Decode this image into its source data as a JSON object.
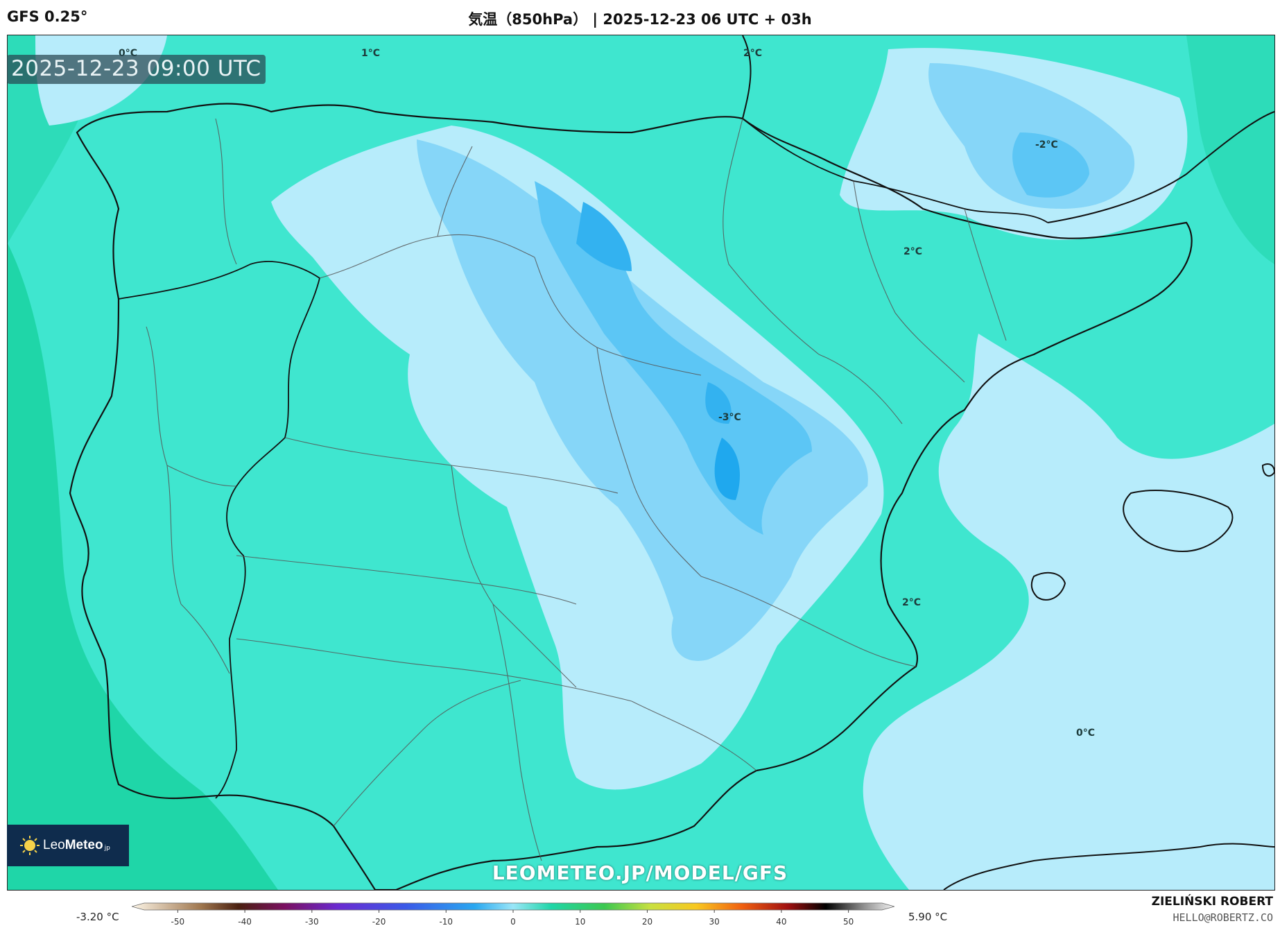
{
  "header": {
    "model": "GFS 0.25°",
    "title": "気温（850hPa） | 2025-12-23 06 UTC + 03h"
  },
  "timestamp": "2025-12-23 09:00 UTC",
  "watermark": "LEOMETEO.JP/MODEL/GFS",
  "logo": {
    "prefix": "Leo",
    "bold": "Meteo",
    "tld": "jp",
    "icon": "sun-icon"
  },
  "credits": {
    "name": "ZIELIŃSKI ROBERT",
    "email": "HELLO@ROBERTZ.CO"
  },
  "colorbar": {
    "min_label": "-3.20 °C",
    "max_label": "5.90 °C",
    "ticks": [
      "-50",
      "-40",
      "-30",
      "-20",
      "-10",
      "0",
      "10",
      "20",
      "30",
      "40",
      "50"
    ],
    "range": [
      -55,
      55
    ]
  },
  "contour_labels": [
    {
      "id": "c1",
      "text": "0°C"
    },
    {
      "id": "c2",
      "text": "1°C"
    },
    {
      "id": "c3",
      "text": "2°C"
    },
    {
      "id": "c4",
      "text": "-2°C"
    },
    {
      "id": "c5",
      "text": "2°C"
    },
    {
      "id": "c6",
      "text": "-3°C"
    },
    {
      "id": "c7",
      "text": "2°C"
    },
    {
      "id": "c8",
      "text": "0°C"
    }
  ],
  "colors": {
    "warm": "#1fd6a8",
    "mid": "#3fe6cf",
    "cool": "#b7ecfb",
    "cold": "#86d6f8",
    "colder": "#5cc6f5",
    "coldest": "#33b2f0",
    "coast": "#111111",
    "border": "#555555"
  }
}
